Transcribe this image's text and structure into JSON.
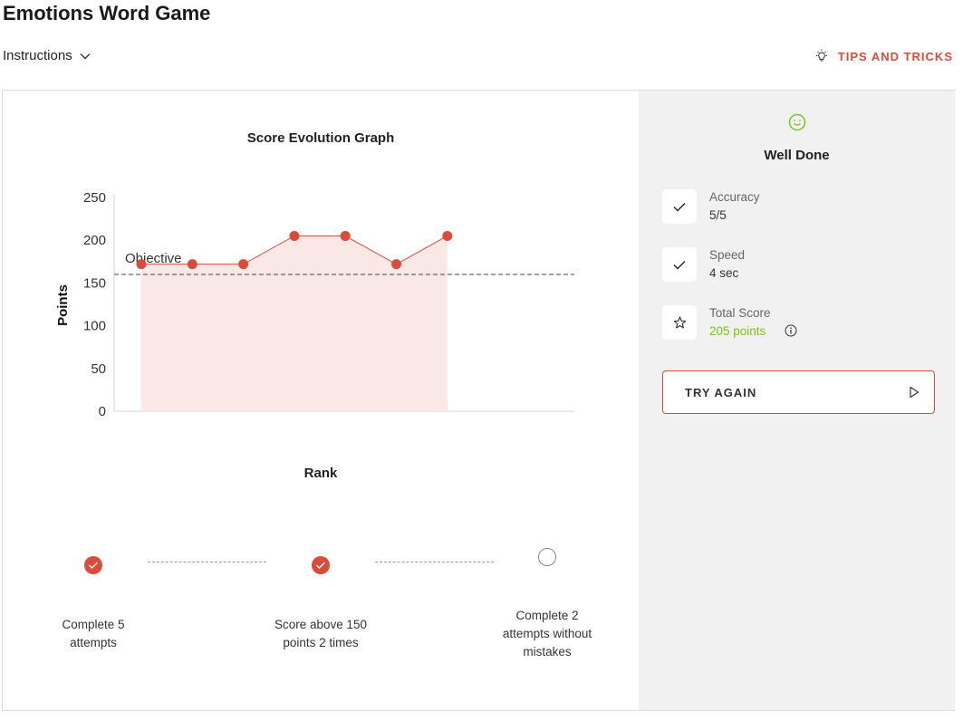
{
  "app": {
    "title": "Emotions Word Game"
  },
  "header": {
    "instructions_label": "Instructions",
    "tips_label": "TIPS AND TRICKS"
  },
  "chart": {
    "title": "Score Evolution Graph",
    "objective_label": "Objective"
  },
  "chart_data": {
    "type": "area",
    "title": "Score Evolution Graph",
    "xlabel": "",
    "ylabel": "Points",
    "x": [
      1,
      2,
      3,
      4,
      5,
      6,
      7
    ],
    "values": [
      172,
      172,
      172,
      205,
      205,
      172,
      205
    ],
    "ylim": [
      0,
      250
    ],
    "yticks": [
      "0",
      "50",
      "100",
      "150",
      "200",
      "250"
    ],
    "objective": 160,
    "grid": false,
    "colors": {
      "line": "#dc4a38",
      "fill": "#f9e8e6"
    }
  },
  "rank": {
    "title": "Rank",
    "items": [
      {
        "label": "Complete 5 attempts",
        "completed": true
      },
      {
        "label": "Score above 150 points 2 times",
        "completed": true
      },
      {
        "label": "Complete 2 attempts without mistakes",
        "completed": false
      }
    ]
  },
  "result": {
    "heading": "Well Done",
    "stats": [
      {
        "label": "Accuracy",
        "value": "5/5",
        "icon": "check-icon"
      },
      {
        "label": "Speed",
        "value": "4 sec",
        "icon": "check-icon"
      },
      {
        "label": "Total Score",
        "value": "205 points",
        "icon": "star-icon"
      }
    ],
    "try_again_label": "TRY AGAIN"
  },
  "colors": {
    "accent": "#dc4a38",
    "success": "#7cc418",
    "sidebar_bg": "#f1f1f1"
  }
}
